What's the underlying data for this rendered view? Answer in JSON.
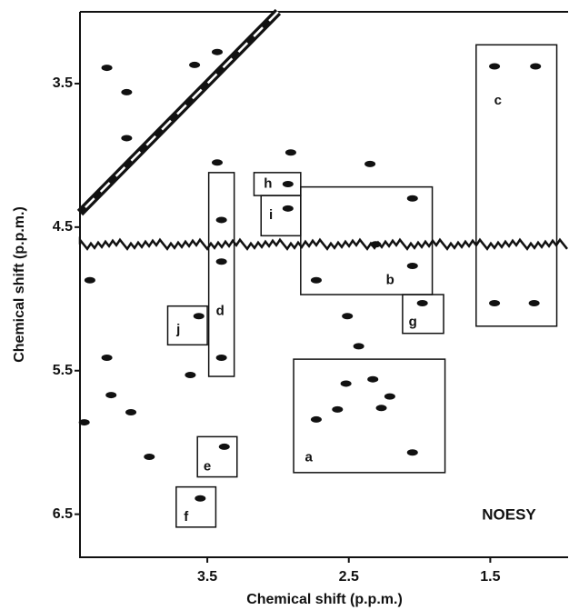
{
  "chart_data": {
    "type": "scatter",
    "xlabel": "Chemical shift (p.p.m.)",
    "ylabel": "Chemical shift (p.p.m.)",
    "annotation": "NOESY",
    "xlim": [
      4.4,
      0.95
    ],
    "ylim": [
      3.0,
      6.8
    ],
    "xticks": [
      3.5,
      2.5,
      1.5
    ],
    "yticks": [
      3.5,
      4.5,
      5.5,
      6.5
    ],
    "color": "#111111",
    "t1_noise_y": 4.62,
    "x": [
      4.21,
      1.47,
      1.18,
      1.47,
      1.19,
      3.59,
      3.43,
      4.07,
      4.07,
      3.43,
      3.4,
      3.4,
      3.4,
      3.56,
      3.62,
      3.38,
      3.55,
      2.93,
      2.93,
      2.35,
      2.05,
      2.73,
      2.31,
      2.05,
      1.98,
      2.51,
      2.43,
      2.33,
      2.52,
      2.27,
      2.73,
      2.58,
      2.05,
      2.21,
      4.21,
      4.18,
      4.04,
      3.91,
      4.37,
      4.33,
      2.91
    ],
    "values": [
      3.39,
      3.38,
      3.38,
      5.03,
      5.03,
      3.37,
      3.28,
      3.56,
      3.88,
      4.05,
      4.45,
      4.74,
      5.41,
      5.12,
      5.53,
      6.03,
      6.39,
      4.2,
      4.37,
      4.06,
      4.3,
      4.87,
      4.62,
      4.77,
      5.03,
      5.12,
      5.33,
      5.56,
      5.59,
      5.76,
      5.84,
      5.77,
      6.07,
      5.68,
      5.41,
      5.67,
      5.79,
      6.1,
      5.86,
      4.87,
      3.98
    ],
    "boxes": [
      {
        "label": "a",
        "x": [
          2.89,
          1.82
        ],
        "y": [
          5.42,
          6.21
        ]
      },
      {
        "label": "b",
        "x": [
          2.84,
          1.91
        ],
        "y": [
          4.22,
          4.97
        ]
      },
      {
        "label": "c",
        "x": [
          1.6,
          1.03
        ],
        "y": [
          3.23,
          5.19
        ]
      },
      {
        "label": "d",
        "x": [
          3.49,
          3.31
        ],
        "y": [
          4.12,
          5.54
        ]
      },
      {
        "label": "e",
        "x": [
          3.57,
          3.29
        ],
        "y": [
          5.96,
          6.24
        ]
      },
      {
        "label": "f",
        "x": [
          3.72,
          3.44
        ],
        "y": [
          6.31,
          6.59
        ]
      },
      {
        "label": "g",
        "x": [
          2.12,
          1.83
        ],
        "y": [
          4.97,
          5.24
        ]
      },
      {
        "label": "h",
        "x": [
          3.17,
          2.84
        ],
        "y": [
          4.12,
          4.28
        ]
      },
      {
        "label": "i",
        "x": [
          3.12,
          2.84
        ],
        "y": [
          4.28,
          4.56
        ]
      },
      {
        "label": "j",
        "x": [
          3.78,
          3.5
        ],
        "y": [
          5.05,
          5.32
        ]
      }
    ]
  }
}
